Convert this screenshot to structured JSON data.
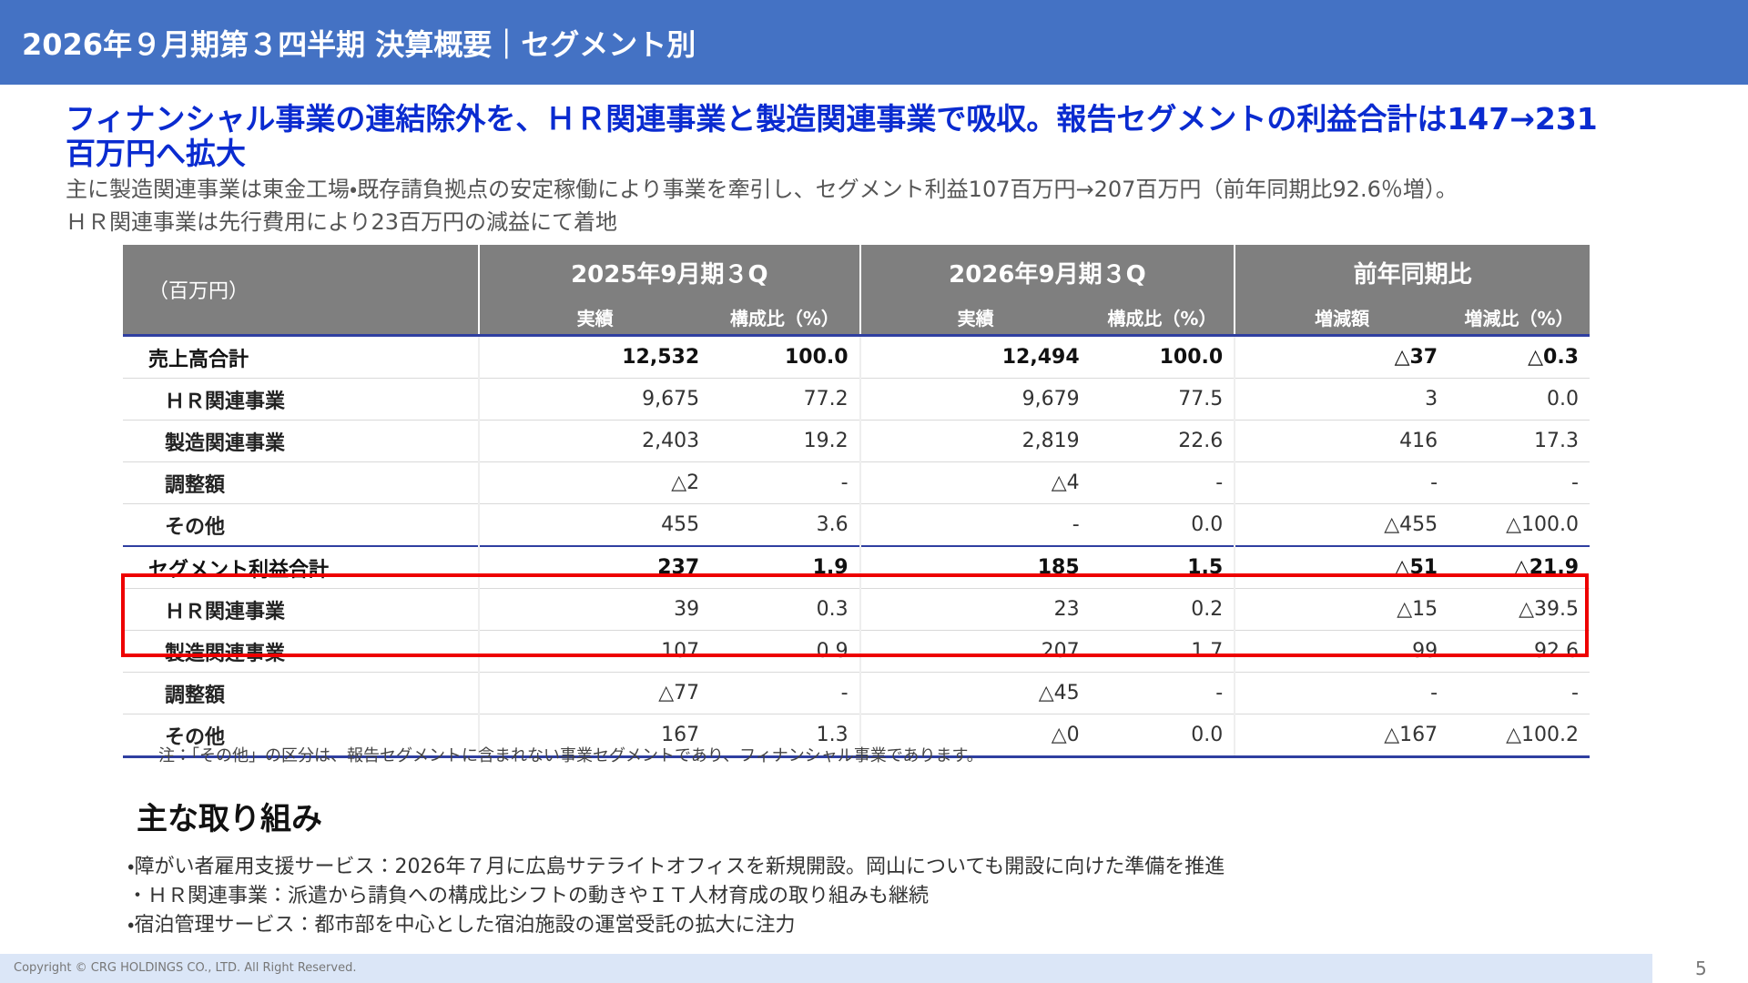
{
  "header": {
    "title": "2026年９月期第３四半期 決算概要｜セグメント別"
  },
  "headline": "フィナンシャル事業の連結除外を、ＨＲ関連事業と製造関連事業で吸収。報告セグメントの利益合計は147→231百万円へ拡大",
  "summary": [
    "主に製造関連事業は東金工場・既存請負拠点の安定稼働により事業を牽引し、セグメント利益107百万円→207百万円（前年同期比92.6％増）。",
    "ＨＲ関連事業は先行費用により23百万円の減益にて着地"
  ],
  "table": {
    "unit": "（百万円）",
    "groups": [
      {
        "label": "2025年9月期３Q",
        "subcolumns": [
          "実績",
          "構成比（%）"
        ]
      },
      {
        "label": "2026年9月期３Q",
        "subcolumns": [
          "実績",
          "構成比（%）"
        ]
      },
      {
        "label": "前年同期比",
        "subcolumns": [
          "増減額",
          "増減比（%）"
        ]
      }
    ],
    "rows": [
      {
        "label": "売上高合計",
        "cells": [
          "12,532",
          "100.0",
          "12,494",
          "100.0",
          "△37",
          "△0.3"
        ]
      },
      {
        "label": "ＨＲ関連事業",
        "cells": [
          "9,675",
          "77.2",
          "9,679",
          "77.5",
          "3",
          "0.0"
        ]
      },
      {
        "label": "製造関連事業",
        "cells": [
          "2,403",
          "19.2",
          "2,819",
          "22.6",
          "416",
          "17.3"
        ]
      },
      {
        "label": "調整額",
        "cells": [
          "△2",
          "-",
          "△4",
          "-",
          "-",
          "-"
        ]
      },
      {
        "label": "その他",
        "cells": [
          "455",
          "3.6",
          "-",
          "0.0",
          "△455",
          "△100.0"
        ]
      },
      {
        "label": "セグメント利益合計",
        "cells": [
          "237",
          "1.9",
          "185",
          "1.5",
          "△51",
          "△21.9"
        ]
      },
      {
        "label": "ＨＲ関連事業",
        "cells": [
          "39",
          "0.3",
          "23",
          "0.2",
          "△15",
          "△39.5"
        ]
      },
      {
        "label": "製造関連事業",
        "cells": [
          "107",
          "0.9",
          "207",
          "1.7",
          "99",
          "92.6"
        ]
      },
      {
        "label": "調整額",
        "cells": [
          "△77",
          "-",
          "△45",
          "-",
          "-",
          "-"
        ]
      },
      {
        "label": "その他",
        "cells": [
          "167",
          "1.3",
          "△0",
          "0.0",
          "△167",
          "△100.2"
        ]
      }
    ],
    "note": "注：「その他」の区分は、報告セグメントに含まれない事業セグメントであり、フィナンシャル事業であります。"
  },
  "initiatives": {
    "title": "主な取り組み",
    "items": [
      "・障がい者雇用支援サービス：2026年７月に広島サテライトオフィスを新規開設。岡山についても開設に向けた準備を推進",
      "・ＨＲ関連事業：派遣から請負への構成比シフトの動きやＩＴ人材育成の取り組みも継続",
      "・宿泊管理サービス：都市部を中心とした宿泊施設の運営受託の拡大に注力"
    ]
  },
  "footer": {
    "copyright": "Copyright © CRG HOLDINGS CO., LTD. All Right Reserved.",
    "page": "5"
  }
}
